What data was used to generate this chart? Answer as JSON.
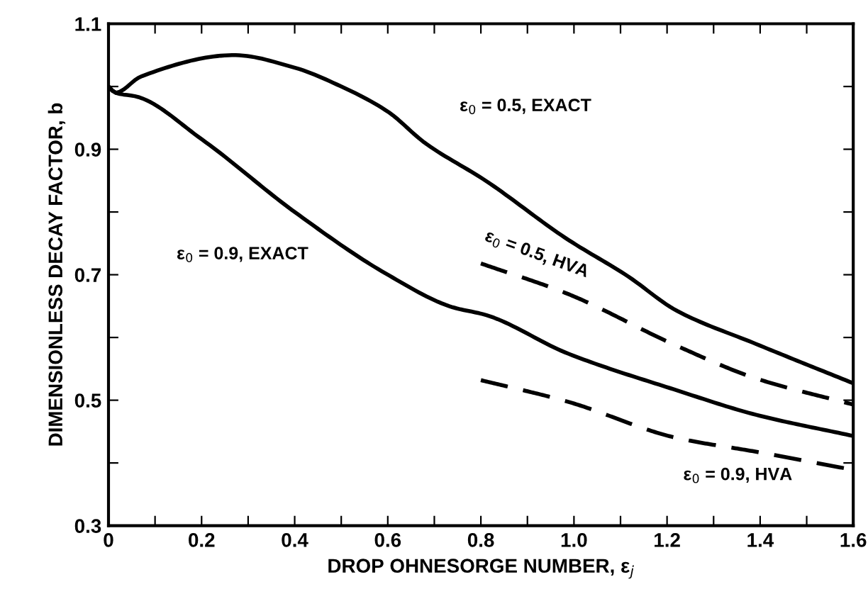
{
  "chart_data": {
    "type": "line",
    "xlabel": "DROP OHNESORGE NUMBER, ε$_{j}$",
    "ylabel": "DIMENSIONLESS DECAY FACTOR, b",
    "xlim": [
      0,
      1.6
    ],
    "ylim": [
      0.3,
      1.1
    ],
    "xticks": [
      0,
      {
        "value": 0.1,
        "label": null
      },
      0.2,
      {
        "value": 0.3,
        "label": null
      },
      0.4,
      {
        "value": 0.5,
        "label": null
      },
      0.6,
      {
        "value": 0.7,
        "label": null
      },
      0.8,
      {
        "value": 0.9,
        "label": null
      },
      {
        "value": 1.0,
        "label": "1.0"
      },
      {
        "value": 1.1,
        "label": null
      },
      1.2,
      {
        "value": 1.3,
        "label": null
      },
      1.4,
      {
        "value": 1.5,
        "label": null
      },
      1.6
    ],
    "yticks": [
      0.3,
      {
        "value": 0.4,
        "label": null
      },
      0.5,
      {
        "value": 0.6,
        "label": null
      },
      0.7,
      {
        "value": 0.8,
        "label": null
      },
      0.9,
      {
        "value": 1.0,
        "label": null
      },
      1.1
    ],
    "grid": false,
    "legend": false,
    "marker": "none",
    "series": [
      {
        "name": "ε$_{0}$ = 0.5, EXACT",
        "color": "#000000",
        "line_style": "solid",
        "x": [
          0,
          0.015,
          0.07,
          0.27,
          0.4,
          0.5,
          0.6,
          0.68,
          0.81,
          0.985,
          1.115,
          1.22,
          1.39,
          1.6
        ],
        "values": [
          1.0,
          0.99,
          1.016,
          1.05,
          1.03,
          1.0,
          0.96,
          0.91,
          0.85,
          0.757,
          0.698,
          0.643,
          0.59,
          0.527
        ]
      },
      {
        "name": "ε$_{0}$ = 0.9, EXACT",
        "color": "#000000",
        "line_style": "solid",
        "x": [
          0,
          0.015,
          0.06,
          0.2,
          0.4,
          0.6,
          0.74,
          0.81,
          0.985,
          1.22,
          1.39,
          1.6
        ],
        "values": [
          1.0,
          0.99,
          0.984,
          0.916,
          0.8,
          0.7,
          0.648,
          0.636,
          0.575,
          0.516,
          0.477,
          0.443
        ]
      },
      {
        "name": "ε$_{0}$ = 0.5, HVA",
        "color": "#000000",
        "line_style": "dashed",
        "x": [
          0.8,
          0.985,
          1.22,
          1.39,
          1.6
        ],
        "values": [
          0.718,
          0.67,
          0.587,
          0.535,
          0.493
        ]
      },
      {
        "name": "ε$_{0}$ = 0.9, HVA",
        "color": "#000000",
        "line_style": "dashed",
        "x": [
          0.8,
          0.985,
          1.22,
          1.39,
          1.6
        ],
        "values": [
          0.532,
          0.498,
          0.44,
          0.418,
          0.389
        ]
      }
    ]
  }
}
